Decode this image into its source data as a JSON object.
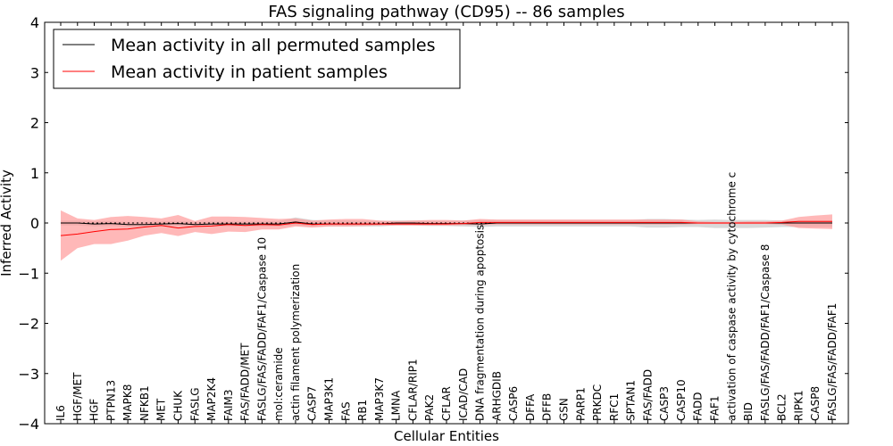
{
  "chart_data": {
    "type": "line",
    "title": "FAS signaling pathway (CD95) -- 86 samples",
    "xlabel": "Cellular Entities",
    "ylabel": "Inferred Activity",
    "ylim": [
      -4,
      4
    ],
    "yticks": [
      4,
      3,
      2,
      1,
      0,
      -1,
      -2,
      -3,
      -4
    ],
    "ytick_labels": [
      "4",
      "3",
      "2",
      "1",
      "0",
      "−1",
      "−2",
      "−3",
      "−4"
    ],
    "grid": false,
    "legend_position": "top-left",
    "categories": [
      "IL6",
      "HGF/MET",
      "HGF",
      "PTPN13",
      "MAPK8",
      "NFKB1",
      "MET",
      "CHUK",
      "FASLG",
      "MAP2K4",
      "FAIM3",
      "FAS/FADD/MET",
      "FASLG/FAS/FADD/FAF1/Caspase 10",
      "mol:ceramide",
      "actin filament polymerization",
      "CASP7",
      "MAP3K1",
      "FAS",
      "RB1",
      "MAP3K7",
      "LMNA",
      "CFLAR/RIP1",
      "PAK2",
      "CFLAR",
      "ICAD/CAD",
      "DNA fragmentation during apoptosis",
      "ARHGDIB",
      "CASP6",
      "DFFA",
      "DFFB",
      "GSN",
      "PARP1",
      "PRKDC",
      "RFC1",
      "SPTAN1",
      "FAS/FADD",
      "CASP3",
      "CASP10",
      "FADD",
      "FAF1",
      "activation of caspase activity by cytochrome c",
      "BID",
      "FASLG/FAS/FADD/FAF1/Caspase 8",
      "BCL2",
      "RIPK1",
      "CASP8",
      "FASLG/FAS/FADD/FAF1"
    ],
    "series": [
      {
        "name": "Mean activity in all permuted samples",
        "color": "#000000",
        "band_color": "#cccccc",
        "values": [
          0.0,
          0.0,
          -0.02,
          -0.01,
          -0.03,
          -0.03,
          -0.02,
          -0.01,
          -0.03,
          -0.02,
          -0.02,
          -0.02,
          -0.02,
          -0.02,
          0.02,
          -0.02,
          -0.02,
          -0.02,
          -0.02,
          -0.02,
          0.0,
          0.0,
          -0.01,
          -0.01,
          -0.01,
          -0.02,
          0.0,
          0.0,
          0.0,
          0.0,
          0.0,
          0.0,
          0.0,
          0.0,
          0.0,
          0.0,
          0.0,
          0.0,
          0.0,
          0.0,
          0.0,
          0.0,
          0.0,
          0.0,
          0.0,
          0.0,
          0.0
        ],
        "lower": [
          -0.05,
          -0.05,
          -0.07,
          -0.06,
          -0.08,
          -0.08,
          -0.07,
          -0.06,
          -0.08,
          -0.07,
          -0.07,
          -0.07,
          -0.07,
          -0.07,
          -0.05,
          -0.07,
          -0.07,
          -0.07,
          -0.07,
          -0.07,
          -0.05,
          -0.05,
          -0.06,
          -0.06,
          -0.07,
          -0.08,
          -0.07,
          -0.07,
          -0.07,
          -0.07,
          -0.07,
          -0.07,
          -0.07,
          -0.07,
          -0.07,
          -0.09,
          -0.09,
          -0.08,
          -0.08,
          -0.1,
          -0.1,
          -0.1,
          -0.09,
          -0.08,
          -0.08,
          -0.08,
          -0.08
        ],
        "upper": [
          0.05,
          0.05,
          0.03,
          0.04,
          0.02,
          0.02,
          0.03,
          0.04,
          0.02,
          0.03,
          0.03,
          0.03,
          0.03,
          0.04,
          0.11,
          0.06,
          0.05,
          0.05,
          0.04,
          0.04,
          0.05,
          0.05,
          0.04,
          0.04,
          0.05,
          0.06,
          0.06,
          0.06,
          0.06,
          0.06,
          0.06,
          0.06,
          0.06,
          0.06,
          0.06,
          0.08,
          0.08,
          0.07,
          0.06,
          0.07,
          0.06,
          0.06,
          0.06,
          0.05,
          0.05,
          0.05,
          0.05
        ]
      },
      {
        "name": "Mean activity in patient samples",
        "color": "#ff0000",
        "band_color": "#ff9a9a",
        "values": [
          -0.25,
          -0.22,
          -0.17,
          -0.13,
          -0.12,
          -0.08,
          -0.05,
          -0.1,
          -0.07,
          -0.06,
          -0.03,
          -0.05,
          -0.03,
          -0.04,
          0.0,
          -0.03,
          -0.02,
          -0.02,
          -0.02,
          -0.02,
          -0.02,
          -0.02,
          -0.02,
          -0.02,
          -0.01,
          0.01,
          0.01,
          0.01,
          0.01,
          0.01,
          0.01,
          0.01,
          0.01,
          0.01,
          0.01,
          0.01,
          0.01,
          0.01,
          0.0,
          0.0,
          0.0,
          0.0,
          0.0,
          0.01,
          0.03,
          0.03,
          0.03
        ],
        "lower": [
          -0.75,
          -0.5,
          -0.42,
          -0.42,
          -0.35,
          -0.25,
          -0.2,
          -0.26,
          -0.18,
          -0.22,
          -0.17,
          -0.18,
          -0.13,
          -0.13,
          -0.07,
          -0.09,
          -0.07,
          -0.07,
          -0.06,
          -0.05,
          -0.05,
          -0.05,
          -0.05,
          -0.05,
          -0.04,
          -0.04,
          -0.03,
          -0.03,
          -0.03,
          -0.03,
          -0.03,
          -0.03,
          -0.03,
          -0.03,
          -0.03,
          -0.03,
          -0.03,
          -0.03,
          -0.02,
          -0.02,
          -0.02,
          -0.02,
          -0.02,
          -0.03,
          -0.1,
          -0.11,
          -0.12
        ],
        "upper": [
          0.25,
          0.09,
          0.06,
          0.12,
          0.14,
          0.12,
          0.09,
          0.16,
          0.04,
          0.13,
          0.13,
          0.12,
          0.1,
          0.08,
          0.09,
          0.05,
          0.07,
          0.08,
          0.08,
          0.05,
          0.04,
          0.05,
          0.06,
          0.06,
          0.05,
          0.08,
          0.07,
          0.07,
          0.07,
          0.07,
          0.07,
          0.07,
          0.07,
          0.07,
          0.07,
          0.07,
          0.07,
          0.07,
          0.03,
          0.02,
          0.02,
          0.03,
          0.03,
          0.05,
          0.12,
          0.15,
          0.17
        ]
      }
    ]
  }
}
